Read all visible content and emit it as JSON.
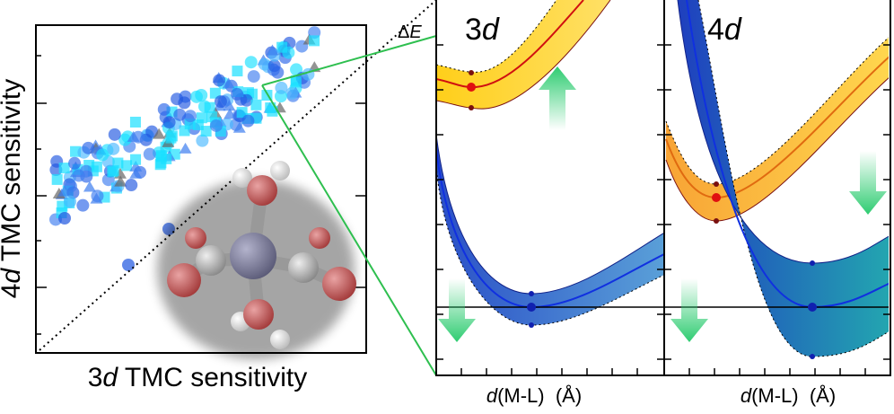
{
  "left_panel": {
    "x_label": [
      "3",
      "d",
      " TMC sensitivity"
    ],
    "y_label": [
      "4",
      "d",
      " TMC sensitivity"
    ]
  },
  "right_panels": {
    "y_label": [
      "Δ",
      "E"
    ],
    "panels": [
      {
        "title": [
          "3",
          "d"
        ],
        "x_label": [
          "d",
          "(M-L)  (Å)"
        ]
      },
      {
        "title": [
          "4",
          "d"
        ],
        "x_label": [
          "d",
          "(M-L)  (Å)"
        ]
      }
    ]
  }
}
